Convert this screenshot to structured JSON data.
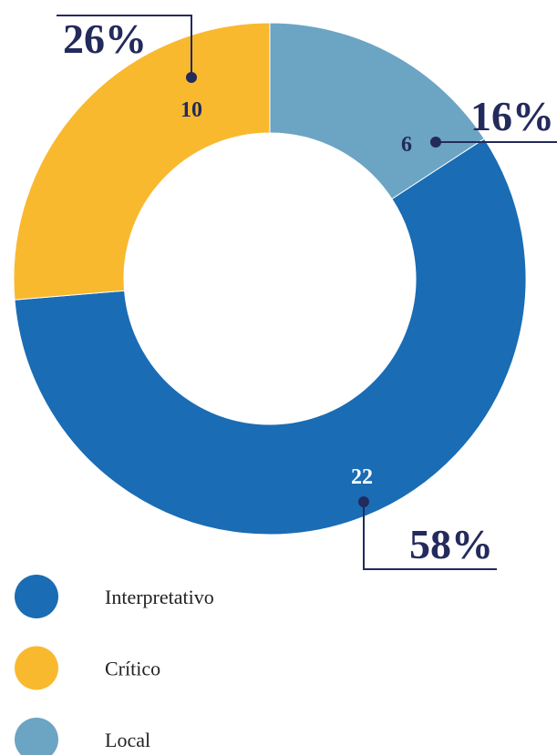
{
  "chart_data": {
    "type": "donut",
    "categories": [
      "Interpretativo",
      "Crítico",
      "Local"
    ],
    "values": [
      22,
      10,
      6
    ],
    "percent_labels": [
      "58%",
      "26%",
      "16%"
    ],
    "colors": [
      "#1a6cb4",
      "#f9b92e",
      "#6ca4c4"
    ]
  }
}
